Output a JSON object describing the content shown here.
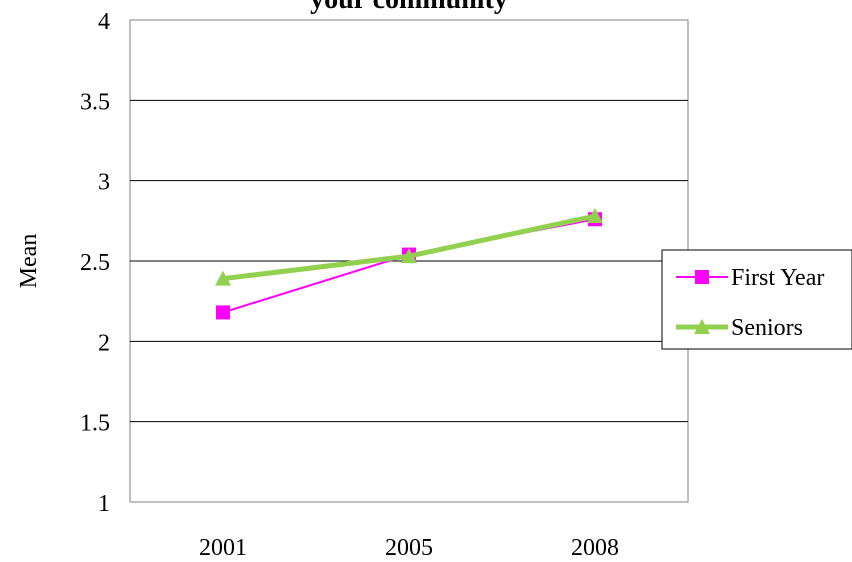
{
  "chart_data": {
    "type": "line",
    "title": "your community",
    "xlabel": "",
    "ylabel": "Mean",
    "categories": [
      "2001",
      "2005",
      "2008"
    ],
    "ylim": [
      1,
      4
    ],
    "yticks": [
      "1",
      "1.5",
      "2",
      "2.5",
      "3",
      "3.5",
      "4"
    ],
    "grid": true,
    "legend_position": "right",
    "series": [
      {
        "name": "First Year",
        "values": [
          2.18,
          2.54,
          2.76
        ],
        "color": "#ff00ff",
        "marker": "square"
      },
      {
        "name": "Seniors",
        "values": [
          2.39,
          2.53,
          2.78
        ],
        "color": "#92d050",
        "marker": "triangle"
      }
    ]
  }
}
